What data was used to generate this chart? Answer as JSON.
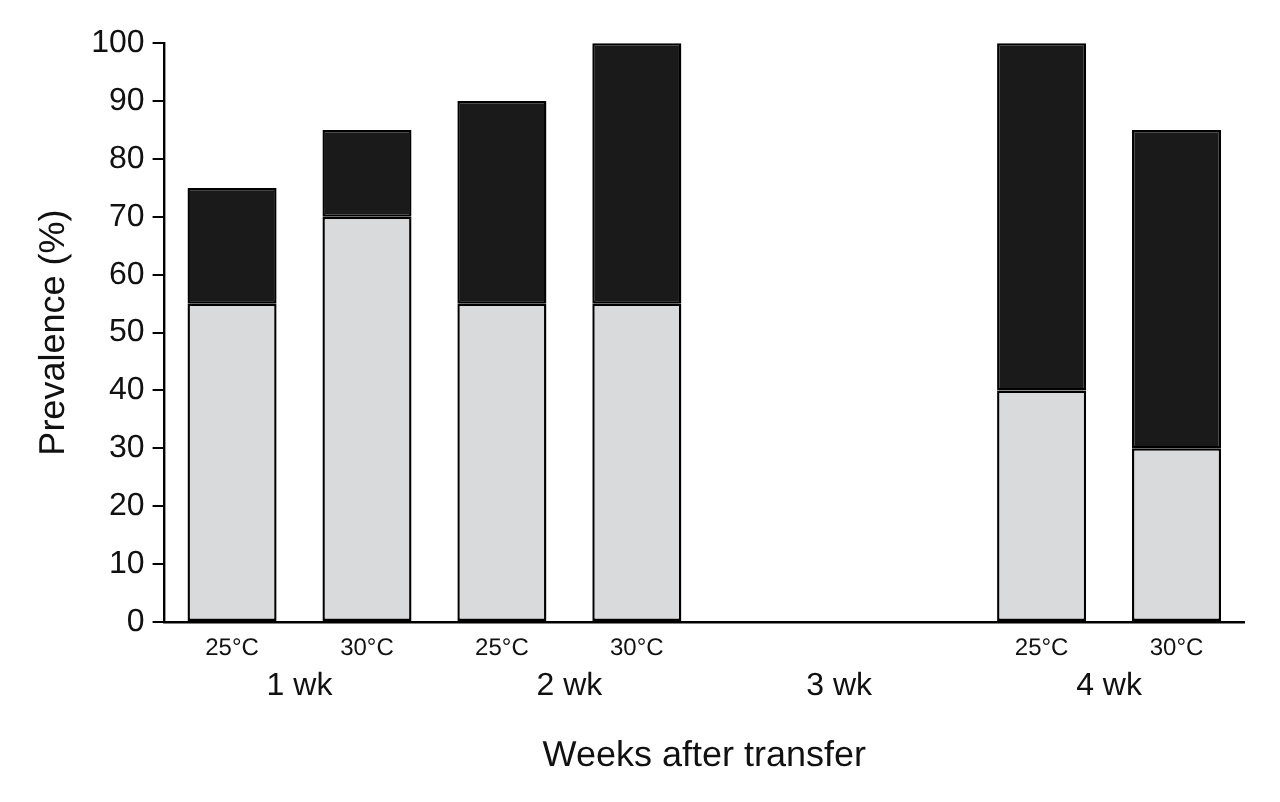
{
  "chart_data": {
    "type": "bar",
    "stacked": true,
    "xlabel": "Weeks after transfer",
    "ylabel": "Prevalence (%)",
    "categories": [
      "25°C",
      "30°C",
      "25°C",
      "30°C",
      null,
      null,
      "25°C",
      "30°C"
    ],
    "series": [
      {
        "color": "#d9dadc",
        "values": [
          55,
          70,
          55,
          55,
          null,
          null,
          40,
          30
        ]
      },
      {
        "color": "#1a1a1a",
        "values": [
          20,
          15,
          35,
          45,
          null,
          null,
          60,
          55
        ]
      }
    ],
    "ylim": [
      0,
      100
    ],
    "yticks": [
      0,
      10,
      20,
      30,
      40,
      50,
      60,
      70,
      80,
      90,
      100
    ],
    "grid": false,
    "legend": false,
    "annotations": [
      "1 wk",
      "2 wk",
      "3 wk",
      "4 wk"
    ]
  }
}
